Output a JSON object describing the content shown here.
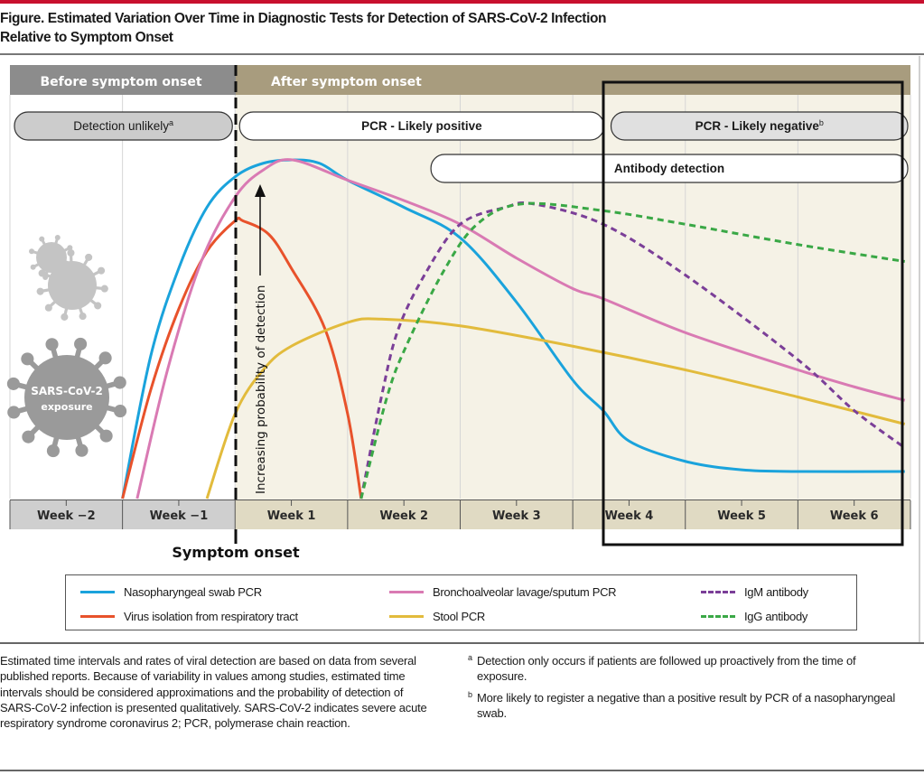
{
  "figure": {
    "title_line1": "Figure. Estimated Variation Over Time in Diagnostic Tests for Detection of SARS-CoV-2 Infection",
    "title_line2": "Relative to Symptom Onset"
  },
  "colors": {
    "accent_rule": "#c8102e",
    "before_band": "#8c8c8c",
    "after_band": "#a89c7e",
    "before_bg": "#ffffff",
    "after_bg": "#f5f2e6",
    "axis_before": "#cfcfcf",
    "axis_after": "#e0dac3",
    "pill_grey": "#cccccc",
    "pill_lightgrey": "#e0e0e0",
    "pill_white": "#ffffff",
    "virus_light": "#c4c4c4",
    "virus_dark": "#9a9a9a"
  },
  "bands": {
    "before": "Before symptom onset",
    "after": "After symptom onset"
  },
  "pills": [
    {
      "id": "detection-unlikely",
      "label": "Detection unlikely",
      "sup": "a",
      "from": -2,
      "to": 0,
      "row": 0,
      "style": "grey",
      "bold": false,
      "align": "center"
    },
    {
      "id": "pcr-likely-positive",
      "label": "PCR - Likely positive",
      "sup": "",
      "from": 0,
      "to": 3.3,
      "row": 0,
      "style": "white",
      "bold": true,
      "align": "center"
    },
    {
      "id": "pcr-likely-negative",
      "label": "PCR - Likely negative",
      "sup": "b",
      "from": 3.3,
      "to": 6,
      "row": 0,
      "style": "lightgrey",
      "bold": true,
      "align": "center"
    },
    {
      "id": "antibody-detection",
      "label": "Antibody detection",
      "sup": "",
      "from": 1.7,
      "to": 6,
      "row": 1,
      "style": "white",
      "bold": true,
      "align": "center"
    }
  ],
  "virus": {
    "name": "SARS-CoV-2",
    "label": "exposure"
  },
  "symptom_onset_label": "Symptom onset",
  "chart_data": {
    "type": "line",
    "title": "Estimated Variation Over Time in Diagnostic Tests for Detection of SARS-CoV-2 Infection Relative to Symptom Onset",
    "xlabel": "",
    "ylabel": "Increasing probability of detection",
    "x_unit": "weeks relative to symptom onset",
    "xlim": [
      -2,
      6
    ],
    "ylim": [
      0,
      1
    ],
    "y_scale": "qualitative",
    "categories": [
      "Week −2",
      "Week −1",
      "Week 1",
      "Week 2",
      "Week 3",
      "Week 4",
      "Week 5",
      "Week 6"
    ],
    "grid": true,
    "symptom_onset_x": 0,
    "highlight_region": {
      "from": 3.25,
      "to": 5.95,
      "meaning": "PCR likely negative"
    },
    "legend_position": "bottom",
    "series": [
      {
        "name": "Nasopharyngeal swab PCR",
        "color": "#1aa3dc",
        "dash": false,
        "points": [
          [
            -1,
            0
          ],
          [
            -0.75,
            0.42
          ],
          [
            -0.5,
            0.68
          ],
          [
            -0.25,
            0.86
          ],
          [
            0,
            0.95
          ],
          [
            0.25,
            0.99
          ],
          [
            0.51,
            1.0
          ],
          [
            0.75,
            0.99
          ],
          [
            1,
            0.94
          ],
          [
            1.5,
            0.86
          ],
          [
            2,
            0.77
          ],
          [
            2.5,
            0.58
          ],
          [
            3,
            0.35
          ],
          [
            3.27,
            0.26
          ],
          [
            3.5,
            0.17
          ],
          [
            4,
            0.11
          ],
          [
            4.5,
            0.085
          ],
          [
            5,
            0.08
          ],
          [
            5.95,
            0.08
          ]
        ]
      },
      {
        "name": "Virus isolation from respiratory tract",
        "color": "#e8522b",
        "dash": false,
        "points": [
          [
            -1,
            0
          ],
          [
            -0.75,
            0.32
          ],
          [
            -0.5,
            0.56
          ],
          [
            -0.25,
            0.73
          ],
          [
            0,
            0.82
          ],
          [
            0.07,
            0.82
          ],
          [
            0.3,
            0.78
          ],
          [
            0.5,
            0.68
          ],
          [
            0.8,
            0.5
          ],
          [
            1,
            0.25
          ],
          [
            1.12,
            0
          ]
        ]
      },
      {
        "name": "Bronchoalveolar lavage/sputum PCR",
        "color": "#d97ab3",
        "dash": false,
        "points": [
          [
            -0.87,
            0
          ],
          [
            -0.6,
            0.38
          ],
          [
            -0.3,
            0.7
          ],
          [
            0,
            0.89
          ],
          [
            0.25,
            0.97
          ],
          [
            0.51,
            1.0
          ],
          [
            1,
            0.94
          ],
          [
            1.5,
            0.88
          ],
          [
            2,
            0.81
          ],
          [
            2.5,
            0.71
          ],
          [
            3,
            0.62
          ],
          [
            3.27,
            0.59
          ],
          [
            4,
            0.49
          ],
          [
            5,
            0.38
          ],
          [
            5.5,
            0.33
          ],
          [
            5.95,
            0.29
          ]
        ]
      },
      {
        "name": "Stool PCR",
        "color": "#e2bb3c",
        "dash": false,
        "points": [
          [
            -0.25,
            0
          ],
          [
            0,
            0.25
          ],
          [
            0.25,
            0.38
          ],
          [
            0.5,
            0.45
          ],
          [
            1,
            0.52
          ],
          [
            1.3,
            0.53
          ],
          [
            2,
            0.51
          ],
          [
            3,
            0.45
          ],
          [
            4,
            0.38
          ],
          [
            5,
            0.3
          ],
          [
            5.95,
            0.22
          ]
        ]
      },
      {
        "name": "IgM antibody",
        "color": "#7b3f98",
        "dash": true,
        "points": [
          [
            1.12,
            0
          ],
          [
            1.3,
            0.3
          ],
          [
            1.45,
            0.5
          ],
          [
            1.7,
            0.67
          ],
          [
            2,
            0.81
          ],
          [
            2.4,
            0.86
          ],
          [
            2.65,
            0.87
          ],
          [
            3.27,
            0.81
          ],
          [
            4,
            0.66
          ],
          [
            5,
            0.41
          ],
          [
            5.5,
            0.26
          ],
          [
            5.95,
            0.15
          ]
        ]
      },
      {
        "name": "IgG antibody",
        "color": "#3aa846",
        "dash": true,
        "points": [
          [
            1.12,
            0
          ],
          [
            1.35,
            0.3
          ],
          [
            1.52,
            0.45
          ],
          [
            1.85,
            0.67
          ],
          [
            2.15,
            0.81
          ],
          [
            2.55,
            0.87
          ],
          [
            3.27,
            0.85
          ],
          [
            4,
            0.81
          ],
          [
            5,
            0.75
          ],
          [
            5.95,
            0.7
          ]
        ]
      }
    ]
  },
  "legend": [
    {
      "label": "Nasopharyngeal swab PCR",
      "color": "#1aa3dc",
      "dash": false
    },
    {
      "label": "Virus isolation from respiratory tract",
      "color": "#e8522b",
      "dash": false
    },
    {
      "label": "Bronchoalveolar lavage/sputum PCR",
      "color": "#d97ab3",
      "dash": false
    },
    {
      "label": "Stool PCR",
      "color": "#e2bb3c",
      "dash": false
    },
    {
      "label": "IgM antibody",
      "color": "#7b3f98",
      "dash": true
    },
    {
      "label": "IgG antibody",
      "color": "#3aa846",
      "dash": true
    }
  ],
  "notes": {
    "main": "Estimated time intervals and rates of viral detection are based on data from several published reports. Because of variability in values among studies, estimated time intervals should be considered approximations and the probability of detection of SARS-CoV-2 infection is presented qualitatively. SARS-CoV-2 indicates severe acute respiratory syndrome coronavirus 2; PCR, polymerase chain reaction.",
    "footnote_a_mark": "a",
    "footnote_a": "Detection only occurs if patients are followed up proactively from the time of exposure.",
    "footnote_b_mark": "b",
    "footnote_b": "More likely to register a negative than a positive result by PCR of a nasopharyngeal swab."
  }
}
